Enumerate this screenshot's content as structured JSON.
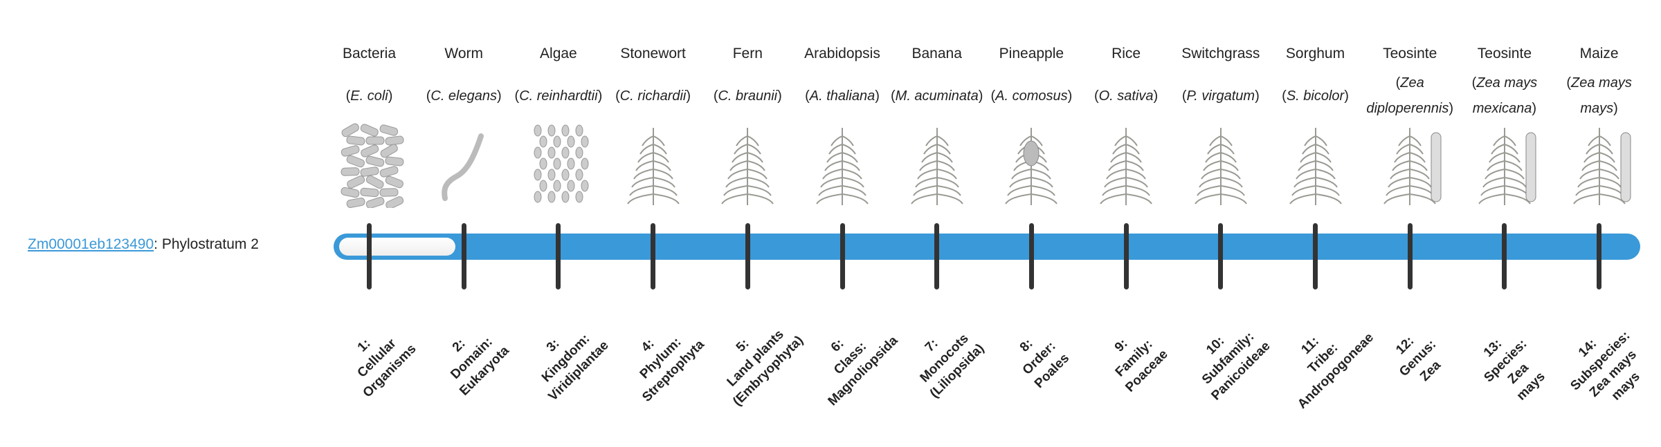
{
  "gene": {
    "id": "Zm00001eb123490",
    "suffix": ": Phylostratum 2",
    "phylostratum": 2
  },
  "colors": {
    "bar": "#3a99d8",
    "tick": "#333333",
    "link": "#3a99d8"
  },
  "organisms": [
    {
      "common": "Bacteria",
      "sci": "E. coli",
      "icon": "bacteria-illustration"
    },
    {
      "common": "Worm",
      "sci": "C. elegans",
      "icon": "worm-illustration"
    },
    {
      "common": "Algae",
      "sci": "C. reinhardtii",
      "icon": "algae-illustration"
    },
    {
      "common": "Stonewort",
      "sci": "C. richardii",
      "icon": "stonewort-illustration"
    },
    {
      "common": "Fern",
      "sci": "C. braunii",
      "icon": "fern-illustration"
    },
    {
      "common": "Arabidopsis",
      "sci": "A. thaliana",
      "icon": "arabidopsis-illustration"
    },
    {
      "common": "Banana",
      "sci": "M. acuminata",
      "icon": "banana-illustration"
    },
    {
      "common": "Pineapple",
      "sci": "A. comosus",
      "icon": "pineapple-illustration"
    },
    {
      "common": "Rice",
      "sci": "O. sativa",
      "icon": "rice-illustration"
    },
    {
      "common": "Switchgrass",
      "sci": "P. virgatum",
      "icon": "switchgrass-illustration"
    },
    {
      "common": "Sorghum",
      "sci": "S. bicolor",
      "icon": "sorghum-illustration"
    },
    {
      "common": "Teosinte",
      "sci": "Zea diploperennis",
      "icon": "teosinte-illustration"
    },
    {
      "common": "Teosinte",
      "sci": "Zea mays mexicana",
      "icon": "teosinte-illustration"
    },
    {
      "common": "Maize",
      "sci": "Zea mays mays",
      "icon": "maize-illustration"
    }
  ],
  "strata": [
    [
      "1:",
      "Cellular",
      "Organisms"
    ],
    [
      "2:",
      "Domain:",
      "Eukaryota"
    ],
    [
      "3:",
      "Kingdom:",
      "Viridiplantae"
    ],
    [
      "4:",
      "Phylum:",
      "Streptophyta"
    ],
    [
      "5:",
      "Land plants",
      "(Embryophyta)"
    ],
    [
      "6:",
      "Class:",
      "Magnoliopsida"
    ],
    [
      "7:",
      "Monocots",
      "(Liliopsida)"
    ],
    [
      "8:",
      "Order:",
      "Poales"
    ],
    [
      "9:",
      "Family:",
      "Poaceae"
    ],
    [
      "10:",
      "Subfamily:",
      "Panicoideae"
    ],
    [
      "11:",
      "Tribe:",
      "Andropogoneae"
    ],
    [
      "12:",
      "Genus:",
      "Zea"
    ],
    [
      "13:",
      "Species:",
      "Zea",
      "mays"
    ],
    [
      "14:",
      "Subspecies:",
      "Zea mays",
      "mays"
    ]
  ]
}
